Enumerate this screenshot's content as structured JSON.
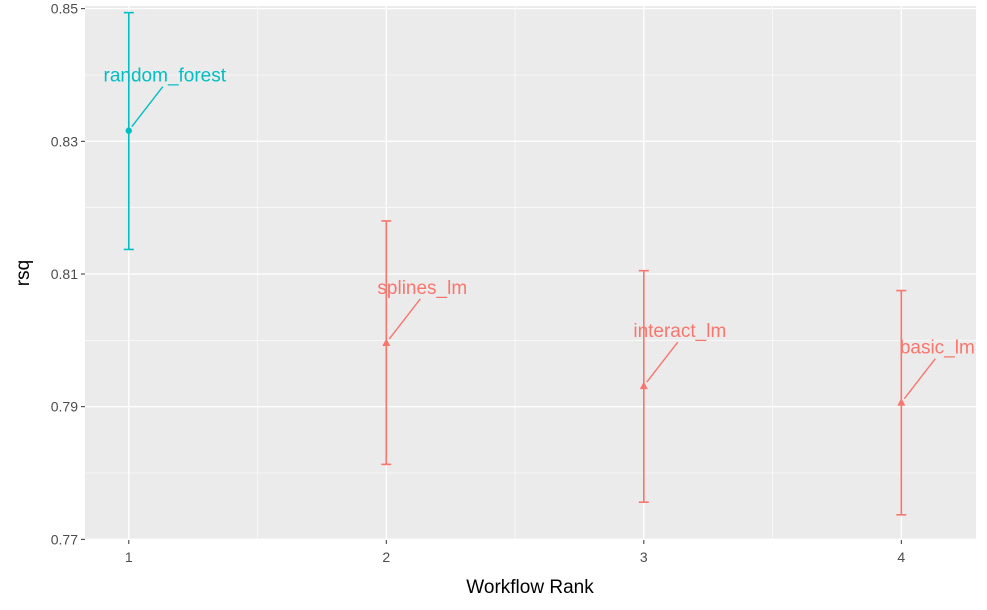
{
  "chart_data": {
    "type": "scatter",
    "xlabel": "Workflow Rank",
    "ylabel": "rsq",
    "xlim": [
      0.83,
      4.29
    ],
    "ylim": [
      0.7699,
      0.8504
    ],
    "x_ticks": [
      "1",
      "2",
      "3",
      "4"
    ],
    "y_ticks": [
      "0.77",
      "0.79",
      "0.81",
      "0.83",
      "0.85"
    ],
    "grid": true,
    "legend": "none",
    "points": [
      {
        "rank": 1,
        "rsq": 0.8316,
        "lower": 0.8137,
        "upper": 0.8494,
        "label": "random_forest",
        "color": "#00bfc4",
        "shape": "circle"
      },
      {
        "rank": 2,
        "rsq": 0.7996,
        "lower": 0.7813,
        "upper": 0.818,
        "label": "splines_lm",
        "color": "#f8766d",
        "shape": "triangle"
      },
      {
        "rank": 3,
        "rsq": 0.7931,
        "lower": 0.7756,
        "upper": 0.8105,
        "label": "interact_lm",
        "color": "#f8766d",
        "shape": "triangle"
      },
      {
        "rank": 4,
        "rsq": 0.7906,
        "lower": 0.7737,
        "upper": 0.8075,
        "label": "basic_lm",
        "color": "#f8766d",
        "shape": "triangle"
      }
    ]
  }
}
